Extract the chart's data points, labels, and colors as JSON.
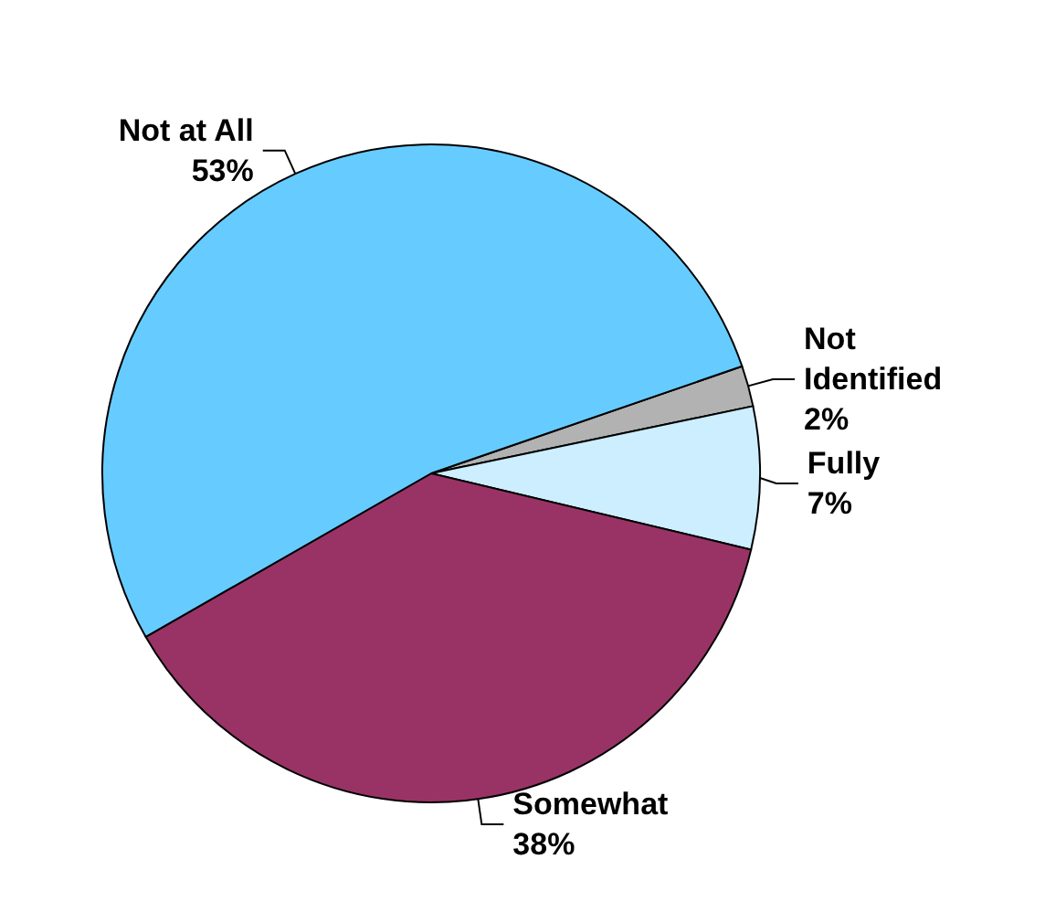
{
  "chart_data": {
    "type": "pie",
    "categories": [
      "Not Identified",
      "Fully",
      "Somewhat",
      "Not at All"
    ],
    "values": [
      2,
      7,
      38,
      53
    ],
    "colors": [
      "#b2b2b2",
      "#cceeff",
      "#993366",
      "#66ccff"
    ],
    "value_labels": [
      "2%",
      "7%",
      "38%",
      "53%"
    ],
    "legend": false
  }
}
